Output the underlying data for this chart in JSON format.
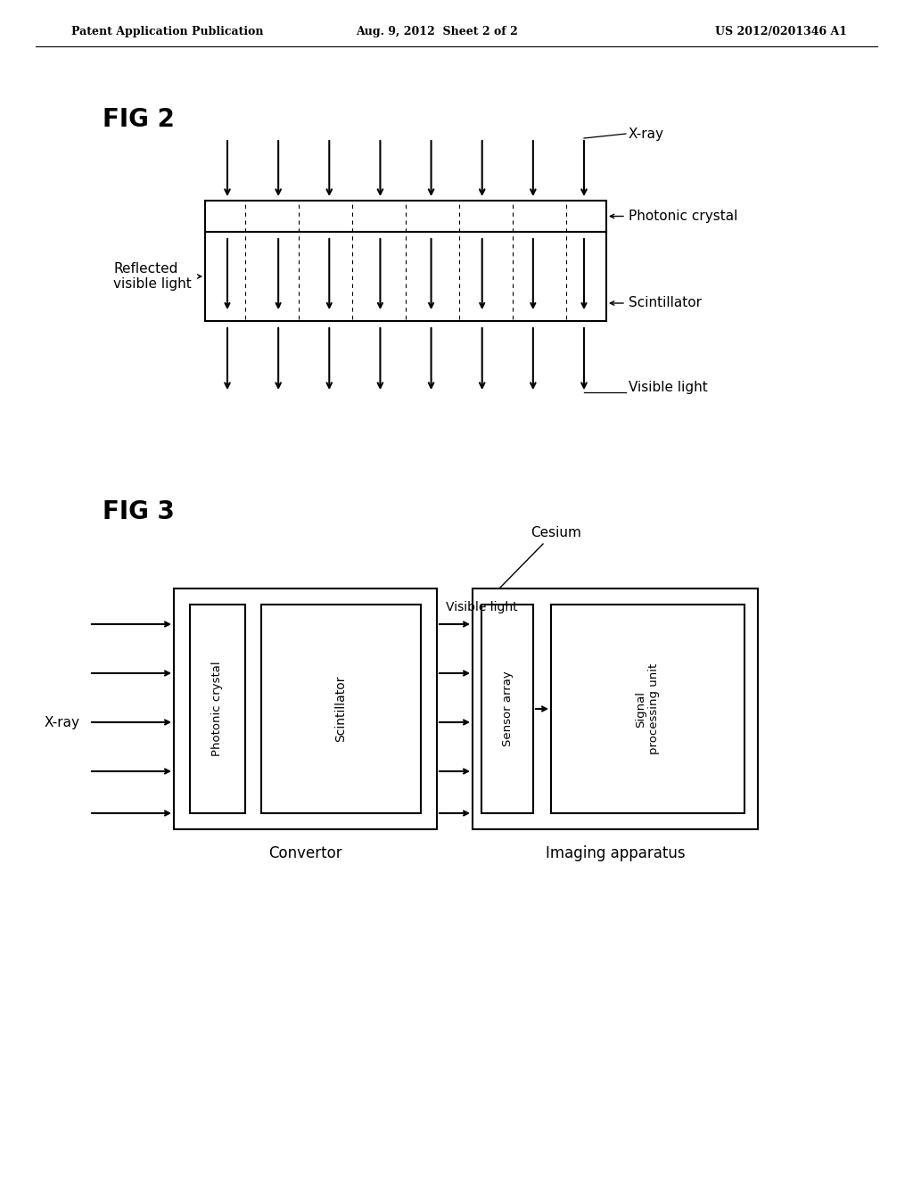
{
  "header_left": "Patent Application Publication",
  "header_center": "Aug. 9, 2012  Sheet 2 of 2",
  "header_right": "US 2012/0201346 A1",
  "fig2_label": "FIG 2",
  "fig3_label": "FIG 3",
  "background_color": "#ffffff",
  "line_color": "#000000",
  "fig2": {
    "xray_label": "X-ray",
    "photonic_label": "Photonic crystal",
    "scintillator_label": "Scintillator",
    "reflected_label": "Reflected\nvisible light",
    "visible_light_label": "Visible light"
  },
  "fig3": {
    "convertor_label": "Convertor",
    "imaging_label": "Imaging apparatus",
    "photonic_crystal_label": "Photonic crystal",
    "scintillator_label": "Scintillator",
    "sensor_array_label": "Sensor array",
    "signal_processing_label": "Signal\nprocessing unit",
    "cesium_label": "Cesium",
    "xray_label": "X-ray",
    "visible_light_label": "Visible light"
  }
}
